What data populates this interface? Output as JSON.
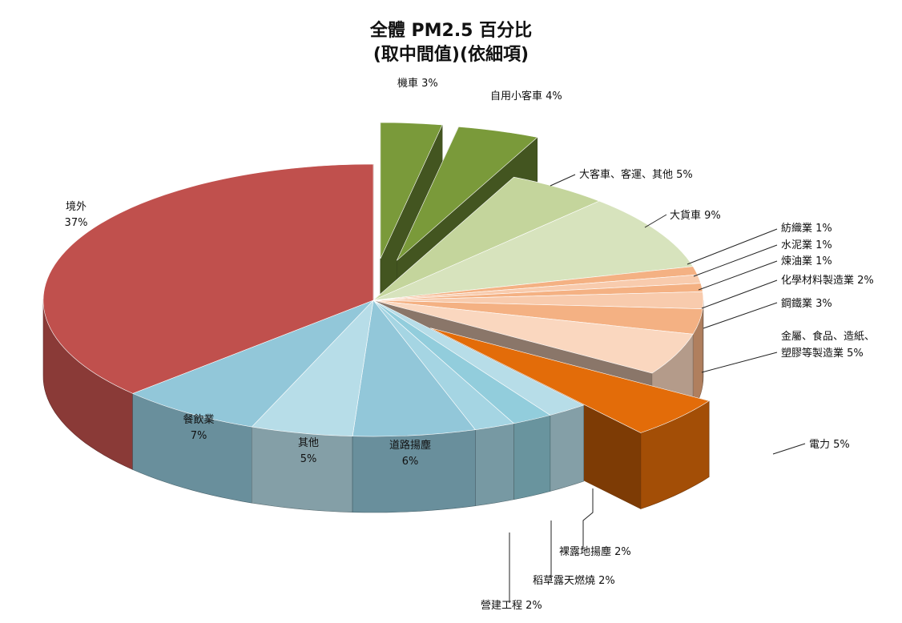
{
  "chart_data": {
    "type": "pie",
    "title": "全體 PM2.5 百分比",
    "subtitle": "(取中間值)(依細項)",
    "slices": [
      {
        "label": "機車",
        "value": 3,
        "display": "3%",
        "color": "#7a9a3a",
        "exploded": true
      },
      {
        "label": "自用小客車",
        "value": 4,
        "display": "4%",
        "color": "#7a9a3a",
        "exploded": true
      },
      {
        "label": "大客車、客運、其他",
        "value": 5,
        "display": "5%",
        "color": "#c4d59c",
        "exploded": false
      },
      {
        "label": "大貨車",
        "value": 9,
        "display": "9%",
        "color": "#d7e3bd",
        "exploded": false
      },
      {
        "label": "紡織業",
        "value": 1,
        "display": "1%",
        "color": "#f4b183",
        "exploded": false
      },
      {
        "label": "水泥業",
        "value": 1,
        "display": "1%",
        "color": "#f8cbad",
        "exploded": false
      },
      {
        "label": "煉油業",
        "value": 1,
        "display": "1%",
        "color": "#f4b183",
        "exploded": false
      },
      {
        "label": "化學材料製造業",
        "value": 2,
        "display": "2%",
        "color": "#f8cbad",
        "exploded": false
      },
      {
        "label": "鋼鐵業",
        "value": 3,
        "display": "3%",
        "color": "#f4b183",
        "exploded": false
      },
      {
        "label": "金屬、食品、造紙、塑膠等製造業",
        "value": 5,
        "display": "5%",
        "color": "#fad7bf",
        "exploded": false
      },
      {
        "label": "電力",
        "value": 5,
        "display": "5%",
        "color": "#e36c09",
        "exploded": true
      },
      {
        "label": "裸露地揚塵",
        "value": 2,
        "display": "2%",
        "color": "#b7dde8",
        "exploded": false
      },
      {
        "label": "稻草露天燃燒",
        "value": 2,
        "display": "2%",
        "color": "#92cddc",
        "exploded": false
      },
      {
        "label": "營建工程",
        "value": 2,
        "display": "2%",
        "color": "#a5d5e3",
        "exploded": false
      },
      {
        "label": "道路揚塵",
        "value": 6,
        "display": "6%",
        "color": "#92c7d9",
        "exploded": false
      },
      {
        "label": "其他",
        "value": 5,
        "display": "5%",
        "color": "#b7dde8",
        "exploded": false
      },
      {
        "label": "餐飲業",
        "value": 7,
        "display": "7%",
        "color": "#92c7d9",
        "exploded": false
      },
      {
        "label": "境外",
        "value": 37,
        "display": "37%",
        "color": "#c0504d",
        "exploded": false
      }
    ],
    "legend": "none",
    "style": "3d-exploded-pie"
  }
}
